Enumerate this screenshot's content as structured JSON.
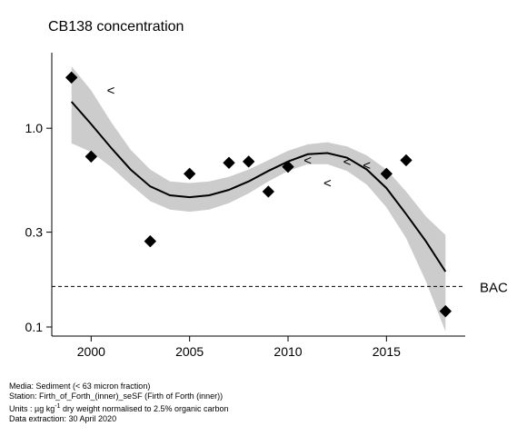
{
  "chart_data": {
    "type": "scatter",
    "title": "CB138 concentration",
    "xlabel": "",
    "ylabel": "",
    "x_axis": {
      "range": [
        1998,
        2019
      ],
      "ticks": [
        2000,
        2005,
        2010,
        2015
      ]
    },
    "y_axis": {
      "scale": "log",
      "range": [
        0.09,
        2.4
      ],
      "ticks": [
        0.1,
        0.3,
        1.0
      ],
      "tick_labels": [
        "0.1",
        "0.3",
        "1.0"
      ]
    },
    "points": [
      {
        "x": 1999,
        "y": 1.8
      },
      {
        "x": 2000,
        "y": 0.72
      },
      {
        "x": 2003,
        "y": 0.27
      },
      {
        "x": 2005,
        "y": 0.59
      },
      {
        "x": 2007,
        "y": 0.67
      },
      {
        "x": 2008,
        "y": 0.68
      },
      {
        "x": 2009,
        "y": 0.48
      },
      {
        "x": 2010,
        "y": 0.64
      },
      {
        "x": 2015,
        "y": 0.59
      },
      {
        "x": 2016,
        "y": 0.69
      },
      {
        "x": 2018,
        "y": 0.12
      }
    ],
    "less_than_markers": [
      {
        "x": 2001,
        "y": 1.55
      },
      {
        "x": 2011,
        "y": 0.69
      },
      {
        "x": 2012,
        "y": 0.53
      },
      {
        "x": 2013,
        "y": 0.68
      },
      {
        "x": 2014,
        "y": 0.65
      }
    ],
    "less_than_symbol": "<",
    "trend": {
      "x": [
        1999,
        2000,
        2001,
        2002,
        2003,
        2004,
        2005,
        2006,
        2007,
        2008,
        2009,
        2010,
        2011,
        2012,
        2013,
        2014,
        2015,
        2016,
        2017,
        2018
      ],
      "y": [
        1.36,
        1.05,
        0.8,
        0.62,
        0.51,
        0.46,
        0.45,
        0.46,
        0.49,
        0.54,
        0.61,
        0.68,
        0.74,
        0.75,
        0.71,
        0.62,
        0.5,
        0.37,
        0.27,
        0.19
      ],
      "lower": [
        0.84,
        0.76,
        0.64,
        0.52,
        0.43,
        0.39,
        0.38,
        0.39,
        0.42,
        0.47,
        0.54,
        0.61,
        0.66,
        0.66,
        0.61,
        0.52,
        0.4,
        0.28,
        0.17,
        0.095
      ],
      "upper": [
        2.05,
        1.55,
        1.08,
        0.78,
        0.62,
        0.54,
        0.53,
        0.54,
        0.57,
        0.62,
        0.69,
        0.77,
        0.83,
        0.85,
        0.81,
        0.73,
        0.62,
        0.48,
        0.36,
        0.29
      ]
    },
    "reference_line": {
      "label": "BAC",
      "y": 0.16,
      "style": "dashed"
    },
    "colors": {
      "points": "#000000",
      "band": "#cccccc",
      "trend": "#000000"
    }
  },
  "footer": {
    "media": "Media: Sediment (< 63 micron fraction)",
    "station": "Station: Firth_of_Forth_(inner)_seSF (Firth of Forth (inner))",
    "units_prefix": "Units : µg kg",
    "units_sup": "-1",
    "units_suffix": " dry weight normalised to 2.5% organic carbon",
    "extraction": "Data extraction: 30 April 2020"
  }
}
